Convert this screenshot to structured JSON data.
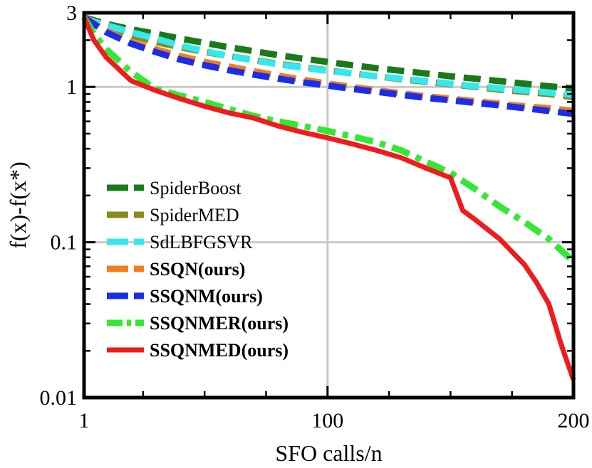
{
  "chart_data": {
    "type": "line",
    "title": "",
    "xlabel": "SFO calls/n",
    "ylabel": "f(x)-f(x*)",
    "xscale": "linear",
    "yscale": "log",
    "xlim": [
      1,
      200
    ],
    "ylim": [
      0.01,
      3
    ],
    "xticks": [
      1,
      100,
      200
    ],
    "xtick_labels": [
      "1",
      "100",
      "200"
    ],
    "yticks": [
      0.01,
      0.1,
      1,
      3
    ],
    "ytick_labels": [
      "0.01",
      "0.1",
      "1",
      "3"
    ],
    "grid": true,
    "legend_position": "lower-left",
    "series": [
      {
        "name": "SpiderBoost",
        "color": "#1a7a1a",
        "style": "dashed",
        "bold": false,
        "x": [
          1,
          10,
          20,
          30,
          40,
          50,
          60,
          70,
          80,
          90,
          100,
          110,
          120,
          130,
          140,
          150,
          160,
          170,
          180,
          190,
          200
        ],
        "y": [
          2.8,
          2.55,
          2.35,
          2.2,
          2.05,
          1.92,
          1.8,
          1.7,
          1.6,
          1.52,
          1.45,
          1.38,
          1.32,
          1.27,
          1.22,
          1.17,
          1.13,
          1.09,
          1.05,
          1.01,
          0.98
        ]
      },
      {
        "name": "SpiderMED",
        "color": "#8a8a1a",
        "style": "dashed",
        "bold": false,
        "x": [
          1,
          10,
          20,
          30,
          40,
          50,
          60,
          70,
          80,
          90,
          100,
          110,
          120,
          130,
          140,
          150,
          160,
          170,
          180,
          190,
          200
        ],
        "y": [
          2.8,
          2.45,
          2.15,
          1.95,
          1.8,
          1.68,
          1.58,
          1.49,
          1.41,
          1.34,
          1.28,
          1.22,
          1.17,
          1.12,
          1.08,
          1.04,
          1.0,
          0.96,
          0.93,
          0.9,
          0.86
        ]
      },
      {
        "name": "SdLBFGSVR",
        "color": "#33e8ee",
        "style": "dashed",
        "bold": false,
        "x": [
          1,
          10,
          20,
          30,
          40,
          50,
          60,
          70,
          80,
          90,
          100,
          110,
          120,
          130,
          140,
          150,
          160,
          170,
          180,
          190,
          200
        ],
        "y": [
          2.75,
          2.5,
          2.25,
          2.05,
          1.85,
          1.7,
          1.58,
          1.48,
          1.4,
          1.33,
          1.27,
          1.22,
          1.17,
          1.13,
          1.09,
          1.05,
          1.01,
          0.98,
          0.95,
          0.92,
          0.89
        ]
      },
      {
        "name": "SSQN(ours)",
        "color": "#f07d1a",
        "style": "dashed",
        "bold": true,
        "x": [
          1,
          10,
          20,
          30,
          40,
          50,
          60,
          70,
          80,
          90,
          100,
          110,
          120,
          130,
          140,
          150,
          160,
          170,
          180,
          190,
          200
        ],
        "y": [
          2.8,
          2.3,
          1.95,
          1.75,
          1.58,
          1.45,
          1.35,
          1.26,
          1.18,
          1.11,
          1.05,
          1.0,
          0.95,
          0.91,
          0.87,
          0.84,
          0.81,
          0.78,
          0.75,
          0.73,
          0.7
        ]
      },
      {
        "name": "SSQNM(ours)",
        "color": "#1a2ee8",
        "style": "dashed",
        "bold": true,
        "x": [
          1,
          10,
          20,
          30,
          40,
          50,
          60,
          70,
          80,
          90,
          100,
          110,
          120,
          130,
          140,
          150,
          160,
          170,
          180,
          190,
          200
        ],
        "y": [
          2.8,
          2.25,
          1.9,
          1.68,
          1.5,
          1.38,
          1.28,
          1.2,
          1.13,
          1.07,
          1.02,
          0.97,
          0.93,
          0.89,
          0.85,
          0.82,
          0.79,
          0.76,
          0.73,
          0.7,
          0.67
        ]
      },
      {
        "name": "SSQNMER(ours)",
        "color": "#33e833",
        "style": "dashdot",
        "bold": true,
        "x": [
          1,
          5,
          10,
          20,
          30,
          40,
          50,
          60,
          70,
          80,
          90,
          100,
          110,
          120,
          130,
          140,
          150,
          160,
          170,
          180,
          190,
          200
        ],
        "y": [
          2.8,
          2.2,
          1.75,
          1.25,
          0.97,
          0.88,
          0.8,
          0.72,
          0.65,
          0.6,
          0.56,
          0.52,
          0.48,
          0.44,
          0.39,
          0.33,
          0.28,
          0.22,
          0.17,
          0.135,
          0.105,
          0.075
        ]
      },
      {
        "name": "SSQNMED(ours)",
        "color": "#ee1c1c",
        "style": "solid",
        "bold": true,
        "x": [
          1,
          5,
          10,
          20,
          30,
          40,
          50,
          60,
          70,
          80,
          90,
          100,
          110,
          120,
          130,
          140,
          150,
          155,
          160,
          170,
          180,
          185,
          190,
          195,
          198,
          200
        ],
        "y": [
          2.8,
          2.0,
          1.55,
          1.1,
          0.95,
          0.84,
          0.75,
          0.68,
          0.63,
          0.56,
          0.51,
          0.47,
          0.43,
          0.39,
          0.35,
          0.3,
          0.26,
          0.16,
          0.14,
          0.105,
          0.072,
          0.055,
          0.04,
          0.022,
          0.016,
          0.013
        ]
      }
    ]
  }
}
